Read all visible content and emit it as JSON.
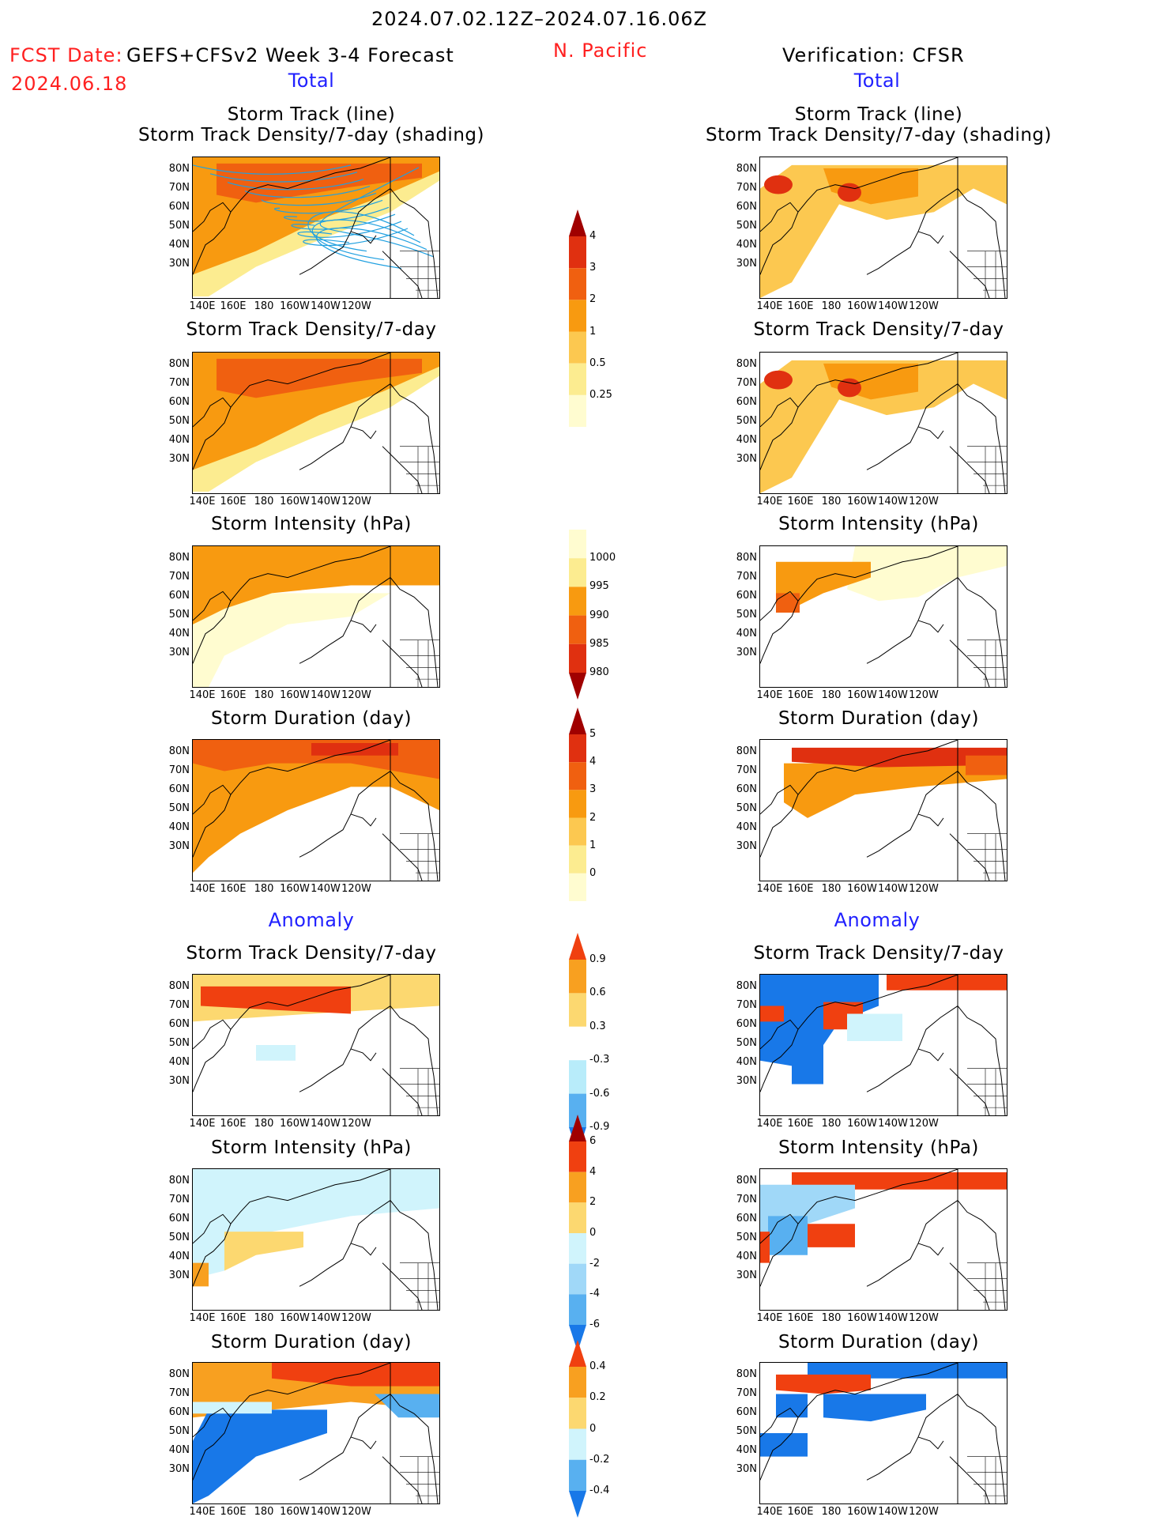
{
  "header": {
    "date_range": "2024.07.02.12Z–2024.07.16.06Z",
    "fcst_prefix": "FCST Date:",
    "model": "GEFS+CFSv2 Week 3-4 Forecast",
    "region": "N. Pacific",
    "verification": "Verification: CFSR",
    "fcst_date": "2024.06.18"
  },
  "sections": {
    "total_left": "Total",
    "total_right": "Total",
    "anomaly_left": "Anomaly",
    "anomaly_right": "Anomaly"
  },
  "axes": {
    "lat": [
      "80N",
      "70N",
      "60N",
      "50N",
      "40N",
      "30N"
    ],
    "lon": [
      "140E",
      "160E",
      "180",
      "160W",
      "140W",
      "120W"
    ]
  },
  "panels": {
    "left": [
      {
        "title1": "Storm Track (line)",
        "title2": "Storm Track Density/7-day (shading)"
      },
      {
        "title1": "Storm Track Density/7-day"
      },
      {
        "title1": "Storm Intensity (hPa)"
      },
      {
        "title1": "Storm Duration (day)"
      },
      {
        "title1": "Storm Track Density/7-day"
      },
      {
        "title1": "Storm Intensity (hPa)"
      },
      {
        "title1": "Storm Duration (day)"
      }
    ],
    "right": [
      {
        "title1": "Storm Track (line)",
        "title2": "Storm Track Density/7-day (shading)"
      },
      {
        "title1": "Storm Track Density/7-day"
      },
      {
        "title1": "Storm Intensity (hPa)"
      },
      {
        "title1": "Storm Duration (day)"
      },
      {
        "title1": "Storm Track Density/7-day"
      },
      {
        "title1": "Storm Intensity (hPa)"
      },
      {
        "title1": "Storm Duration (day)"
      }
    ]
  },
  "colorbars": {
    "density_total": {
      "labels": [
        "4",
        "3",
        "2",
        "1",
        "0.5",
        "0.25"
      ],
      "colors": [
        "#a00000",
        "#e03010",
        "#f06010",
        "#f89a10",
        "#fcc850",
        "#fcec90",
        "#fffcd0"
      ]
    },
    "intensity_total": {
      "labels": [
        "1000",
        "995",
        "990",
        "985",
        "980"
      ],
      "colors": [
        "#fffcd0",
        "#fcec90",
        "#f89a10",
        "#f06010",
        "#e03010",
        "#a00000"
      ]
    },
    "duration_total": {
      "labels": [
        "5",
        "4",
        "3",
        "2",
        "1",
        "0"
      ],
      "colors": [
        "#a00000",
        "#e03010",
        "#f06010",
        "#f89a10",
        "#fcc850",
        "#fcec90",
        "#fffcd0"
      ]
    },
    "density_anom": {
      "labels": [
        "0.9",
        "0.6",
        "0.3",
        "-0.3",
        "-0.6",
        "-0.9"
      ],
      "colors": [
        "#f04010",
        "#f8a020",
        "#fcd870",
        "#ffffff",
        "#b8ecfa",
        "#58b0f0",
        "#1878e8"
      ]
    },
    "intensity_anom": {
      "labels": [
        "6",
        "4",
        "2",
        "0",
        "-2",
        "-4",
        "-6"
      ],
      "colors": [
        "#a00000",
        "#f04010",
        "#f8a020",
        "#fcd870",
        "#d0f4fc",
        "#a0d8f8",
        "#58b0f0",
        "#1878e8"
      ]
    },
    "duration_anom": {
      "labels": [
        "0.4",
        "0.2",
        "0",
        "-0.2",
        "-0.4"
      ],
      "colors": [
        "#f04010",
        "#f8a020",
        "#fcd870",
        "#d0f4fc",
        "#58b0f0",
        "#1878e8"
      ]
    }
  }
}
